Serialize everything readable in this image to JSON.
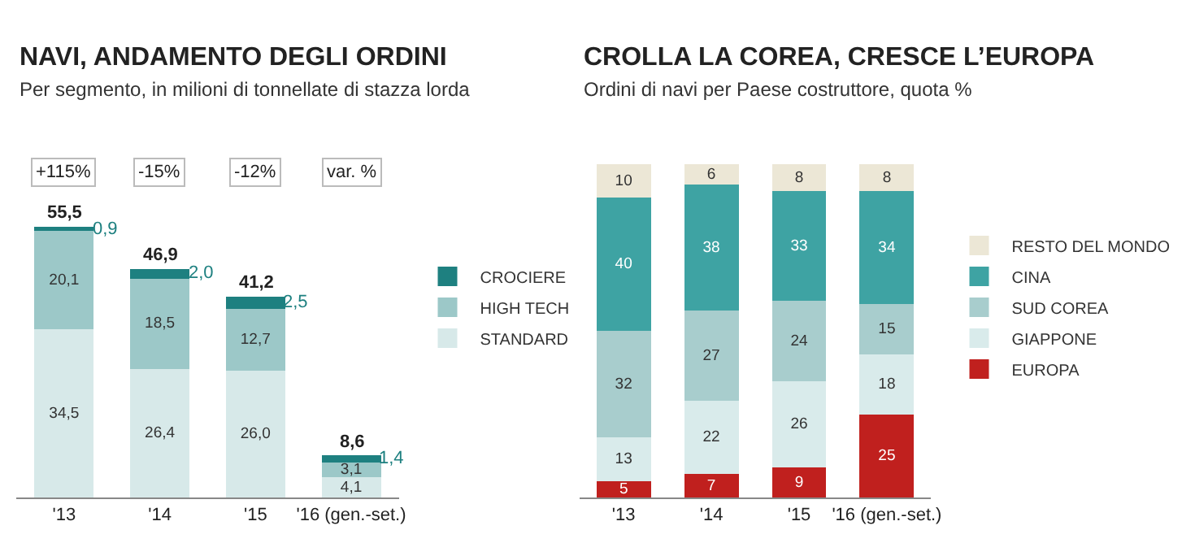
{
  "chart_data": [
    {
      "type": "bar",
      "title": "NAVI, ANDAMENTO DEGLI ORDINI",
      "subtitle": "Per segmento, in milioni di tonnellate di stazza lorda",
      "categories": [
        "'13",
        "'14",
        "'15",
        "'16 (gen.-set.)"
      ],
      "stacked": true,
      "legend": "right",
      "tick_labels": "x",
      "series": [
        {
          "name": "STANDARD",
          "color": "#d7e9e9",
          "values": [
            34.5,
            26.4,
            26.0,
            4.1
          ],
          "value_labels": [
            "34,5",
            "26,4",
            "26,0",
            "4,1"
          ]
        },
        {
          "name": "HIGH TECH",
          "color": "#9cc8c8",
          "values": [
            20.1,
            18.5,
            12.7,
            3.1
          ],
          "value_labels": [
            "20,1",
            "18,5",
            "12,7",
            "3,1"
          ]
        },
        {
          "name": "CROCIERE",
          "color": "#1e8080",
          "values": [
            0.9,
            2.0,
            2.5,
            1.4
          ],
          "value_labels": [
            "0,9",
            "2,0",
            "2,5",
            "1,4"
          ]
        }
      ],
      "totals": [
        "55,5",
        "46,9",
        "41,2",
        "8,6"
      ],
      "annotations": [
        "+115%",
        "-15%",
        "-12%",
        "var. %"
      ]
    },
    {
      "type": "bar",
      "title": "CROLLA LA COREA, CRESCE L’EUROPA",
      "subtitle": "Ordini di navi per Paese costruttore, quota %",
      "categories": [
        "'13",
        "'14",
        "'15",
        "'16 (gen.-set.)"
      ],
      "stacked": true,
      "legend": "right",
      "tick_labels": "x",
      "data_labels": true,
      "series": [
        {
          "name": "EUROPA",
          "color": "#c0201e",
          "values": [
            5,
            7,
            9,
            25
          ]
        },
        {
          "name": "GIAPPONE",
          "color": "#d9ebeb",
          "values": [
            13,
            22,
            26,
            18
          ]
        },
        {
          "name": "SUD COREA",
          "color": "#a8cdcd",
          "values": [
            32,
            27,
            24,
            15
          ]
        },
        {
          "name": "CINA",
          "color": "#3ea3a3",
          "values": [
            40,
            38,
            33,
            34
          ]
        },
        {
          "name": "RESTO DEL MONDO",
          "color": "#ece7d6",
          "values": [
            10,
            6,
            8,
            8
          ]
        }
      ]
    }
  ]
}
